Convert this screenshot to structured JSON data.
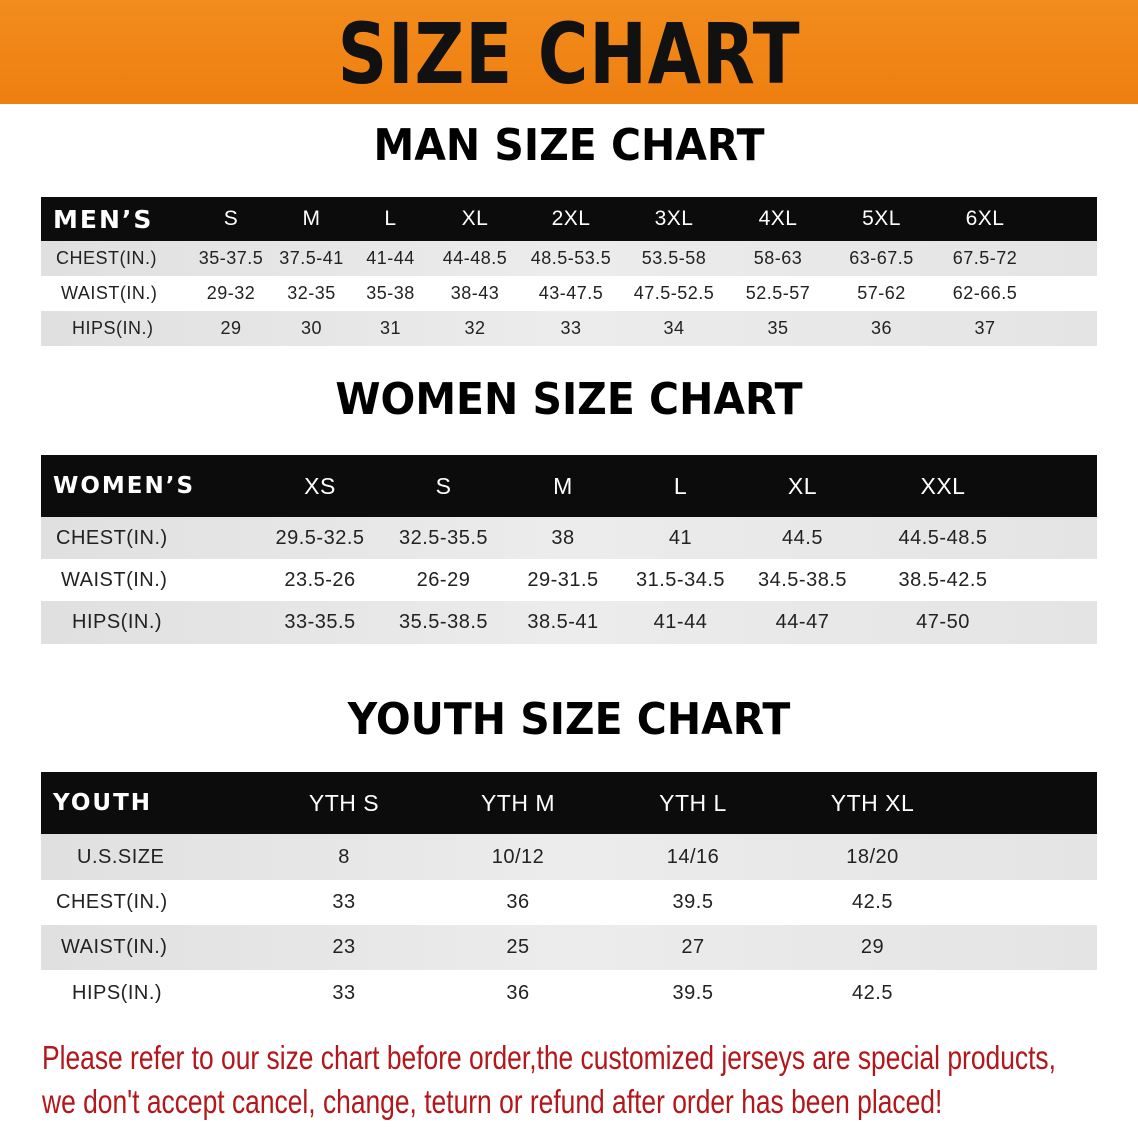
{
  "banner_title": "SIZE CHART",
  "colors": {
    "banner": "#f08a1e",
    "header_row": "#0c0c0c",
    "stripe": "#e4e4e4",
    "note": "#b3171b"
  },
  "men": {
    "title": "MAN SIZE CHART",
    "header_label": "MEN’S",
    "columns": [
      "S",
      "M",
      "L",
      "XL",
      "2XL",
      "3XL",
      "4XL",
      "5XL",
      "6XL"
    ],
    "rows": [
      {
        "label": "CHEST(IN.)",
        "values": [
          "35-37.5",
          "37.5-41",
          "41-44",
          "44-48.5",
          "48.5-53.5",
          "53.5-58",
          "58-63",
          "63-67.5",
          "67.5-72"
        ]
      },
      {
        "label": "WAIST(IN.)",
        "values": [
          "29-32",
          "32-35",
          "35-38",
          "38-43",
          "43-47.5",
          "47.5-52.5",
          "52.5-57",
          "57-62",
          "62-66.5"
        ]
      },
      {
        "label": "HIPS(IN.)",
        "values": [
          "29",
          "30",
          "31",
          "32",
          "33",
          "34",
          "35",
          "36",
          "37"
        ]
      }
    ]
  },
  "women": {
    "title": "WOMEN SIZE CHART",
    "header_label": "WOMEN’S",
    "columns": [
      "XS",
      "S",
      "M",
      "L",
      "XL",
      "XXL"
    ],
    "rows": [
      {
        "label": "CHEST(IN.)",
        "values": [
          "29.5-32.5",
          "32.5-35.5",
          "38",
          "41",
          "44.5",
          "44.5-48.5"
        ]
      },
      {
        "label": "WAIST(IN.)",
        "values": [
          "23.5-26",
          "26-29",
          "29-31.5",
          "31.5-34.5",
          "34.5-38.5",
          "38.5-42.5"
        ]
      },
      {
        "label": "HIPS(IN.)",
        "values": [
          "33-35.5",
          "35.5-38.5",
          "38.5-41",
          "41-44",
          "44-47",
          "47-50"
        ]
      }
    ]
  },
  "youth": {
    "title": "YOUTH SIZE CHART",
    "header_label": "YOUTH",
    "columns": [
      "YTH S",
      "YTH M",
      "YTH L",
      "YTH XL"
    ],
    "rows": [
      {
        "label": "U.S.SIZE",
        "values": [
          "8",
          "10/12",
          "14/16",
          "18/20"
        ]
      },
      {
        "label": "CHEST(IN.)",
        "values": [
          "33",
          "36",
          "39.5",
          "42.5"
        ]
      },
      {
        "label": "WAIST(IN.)",
        "values": [
          "23",
          "25",
          "27",
          "29"
        ]
      },
      {
        "label": "HIPS(IN.)",
        "values": [
          "33",
          "36",
          "39.5",
          "42.5"
        ]
      }
    ]
  },
  "note": {
    "line1": "Please refer to our size chart before order,the customized jerseys are special products,",
    "line2": "we don't accept cancel, change, teturn or refund after order has been placed!"
  }
}
